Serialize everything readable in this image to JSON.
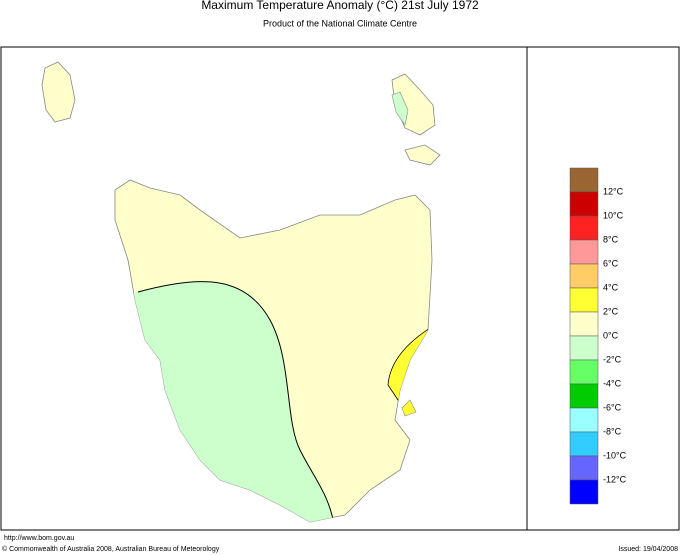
{
  "header": {
    "title": "Maximum Temperature Anomaly (°C)  21st July 1972",
    "subtitle": "Product of the National Climate Centre"
  },
  "legend": {
    "colors": [
      "#996633",
      "#cc0000",
      "#ff2222",
      "#ff9999",
      "#ffcc66",
      "#ffff33",
      "#ffffcc",
      "#ccffcc",
      "#66ff66",
      "#00cc00",
      "#99ffff",
      "#33ccff",
      "#6666ff",
      "#0000ff"
    ],
    "labels": [
      "12°C",
      "10°C",
      "8°C",
      "6°C",
      "4°C",
      "2°C",
      "0°C",
      "-2°C",
      "-4°C",
      "-6°C",
      "-8°C",
      "-10°C",
      "-12°C"
    ]
  },
  "footer": {
    "url": "http://www.bom.gov.au",
    "copyright": "© Commonwealth of Australia 2008, Australian Bureau of Meteorology",
    "issued": "Issued: 19/04/2008"
  }
}
